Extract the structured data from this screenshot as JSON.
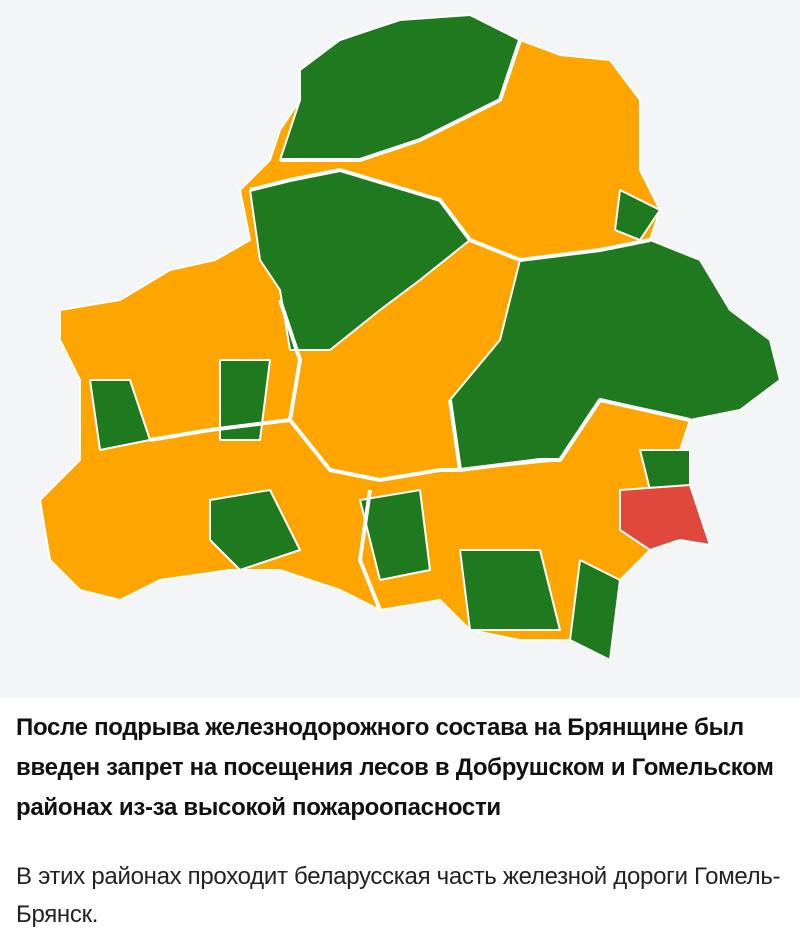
{
  "post": {
    "headline": "После подрыва железнодорожного состава на Брянщине был введен запрет на посещения лесов в Добрушском и Гомельском районах из-за высокой пожароопасности",
    "body": "В этих районах проходит беларусская часть железной дороги Гомель-Брянск."
  },
  "map": {
    "colors": {
      "background": "#f4f5f7",
      "green": "#1f7a1f",
      "orange": "#ffa500",
      "red": "#e0483c",
      "border": "#ffffff"
    }
  }
}
